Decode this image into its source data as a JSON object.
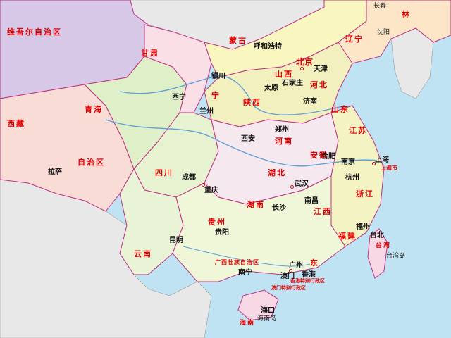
{
  "capital": "北京",
  "cities": {
    "changchun": "长春",
    "shenyang": "沈阳",
    "huhehaote": "呼和浩特",
    "yinchuan": "银川",
    "tianjin": "天津",
    "shijiazhuang": "石家庄",
    "taiyuan": "太原",
    "jinan": "济南",
    "xining": "西宁",
    "lanzhou": "兰州",
    "zhengzhou": "郑州",
    "xian": "西安",
    "hefei": "合肥",
    "nanjing": "南京",
    "shanghai": "上海",
    "lasa": "拉萨",
    "chengdu": "成都",
    "chongqing": "重庆",
    "wuhan": "武汉",
    "hangzhou": "杭州",
    "nanchang": "南昌",
    "changsha": "长沙",
    "fuzhou": "福州",
    "taibei": "台北",
    "guiyang": "贵阳",
    "kunming": "昆明",
    "nanning": "南宁",
    "guangzhou": "广州",
    "aomen": "澳门",
    "xianggang": "香港",
    "haikou": "海口",
    "hainandao": "海南岛",
    "taiwandao": "台湾岛"
  },
  "provinces": {
    "xinjiang": "维吾尔自治区",
    "gansu": "甘肃",
    "neimenggu": "蒙古",
    "ningxia": "宁",
    "qinghai": "青海",
    "xizang": "西藏",
    "zizhiqu": "自治区",
    "shaanxi": "陕西",
    "shanxi": "山西",
    "hebei": "河北",
    "henan": "河南",
    "shandong": "山东",
    "jiangsu": "江苏",
    "anhui": "安徽",
    "sichuan": "四川",
    "hubei": "湖北",
    "hunan": "湖南",
    "zhejiang": "浙江",
    "jiangxi": "江西",
    "fujian": "福建",
    "guizhou": "贵州",
    "yunnan": "云南",
    "guangxi": "广西壮族自治区",
    "guangdong": "东",
    "liaoning": "辽宁",
    "jilin": "林",
    "taiwan": "台湾",
    "hainan": "海南",
    "shanghaishi": "上海市",
    "xianggang_sar": "香港特别行政区",
    "aomen_sar": "澳门特别行政区"
  },
  "colors": {
    "sea": "#bfe3f3",
    "foreign": "#e8e8e8",
    "xinjiang": "#d8c8e8",
    "xizang": "#f9dcd6",
    "qinghai": "#dff0c8",
    "gansu": "#fadfe6",
    "neimenggu": "#faf6c0",
    "province_border": "#c03080",
    "label_red": "#e00000",
    "river": "#5fa0d8"
  }
}
